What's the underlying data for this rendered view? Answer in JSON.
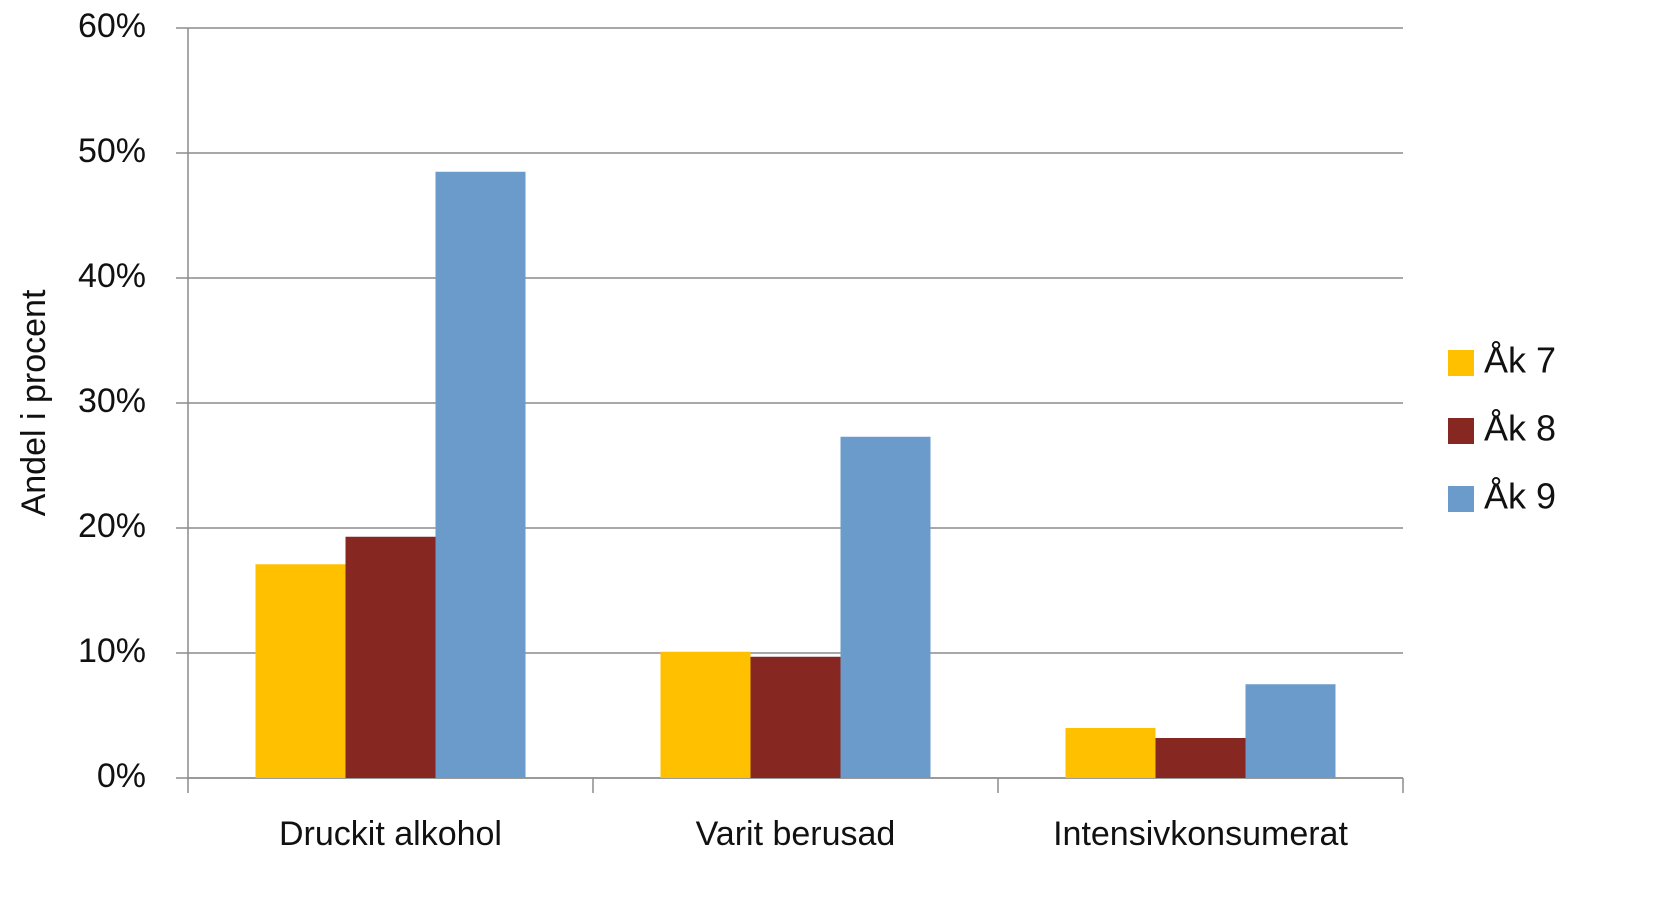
{
  "chart_data": {
    "type": "bar",
    "y_label": "Andel i procent",
    "categories": [
      "Druckit alkohol",
      "Varit berusad",
      "Intensivkonsumerat"
    ],
    "series": [
      {
        "name": "Åk 7",
        "color": "#ffc000",
        "values": [
          17.1,
          10.1,
          4.0
        ]
      },
      {
        "name": "Åk 8",
        "color": "#862722",
        "values": [
          19.3,
          9.7,
          3.2
        ]
      },
      {
        "name": "Åk 9",
        "color": "#6a9bcb",
        "values": [
          48.5,
          27.3,
          7.5
        ]
      }
    ],
    "ylim": [
      0,
      60
    ],
    "yticks": [
      {
        "value": 0,
        "label": "0%"
      },
      {
        "value": 10,
        "label": "10%"
      },
      {
        "value": 20,
        "label": "20%"
      },
      {
        "value": 30,
        "label": "30%"
      },
      {
        "value": 40,
        "label": "40%"
      },
      {
        "value": 50,
        "label": "50%"
      },
      {
        "value": 60,
        "label": "60%"
      }
    ],
    "grid": true,
    "legend": "right"
  }
}
